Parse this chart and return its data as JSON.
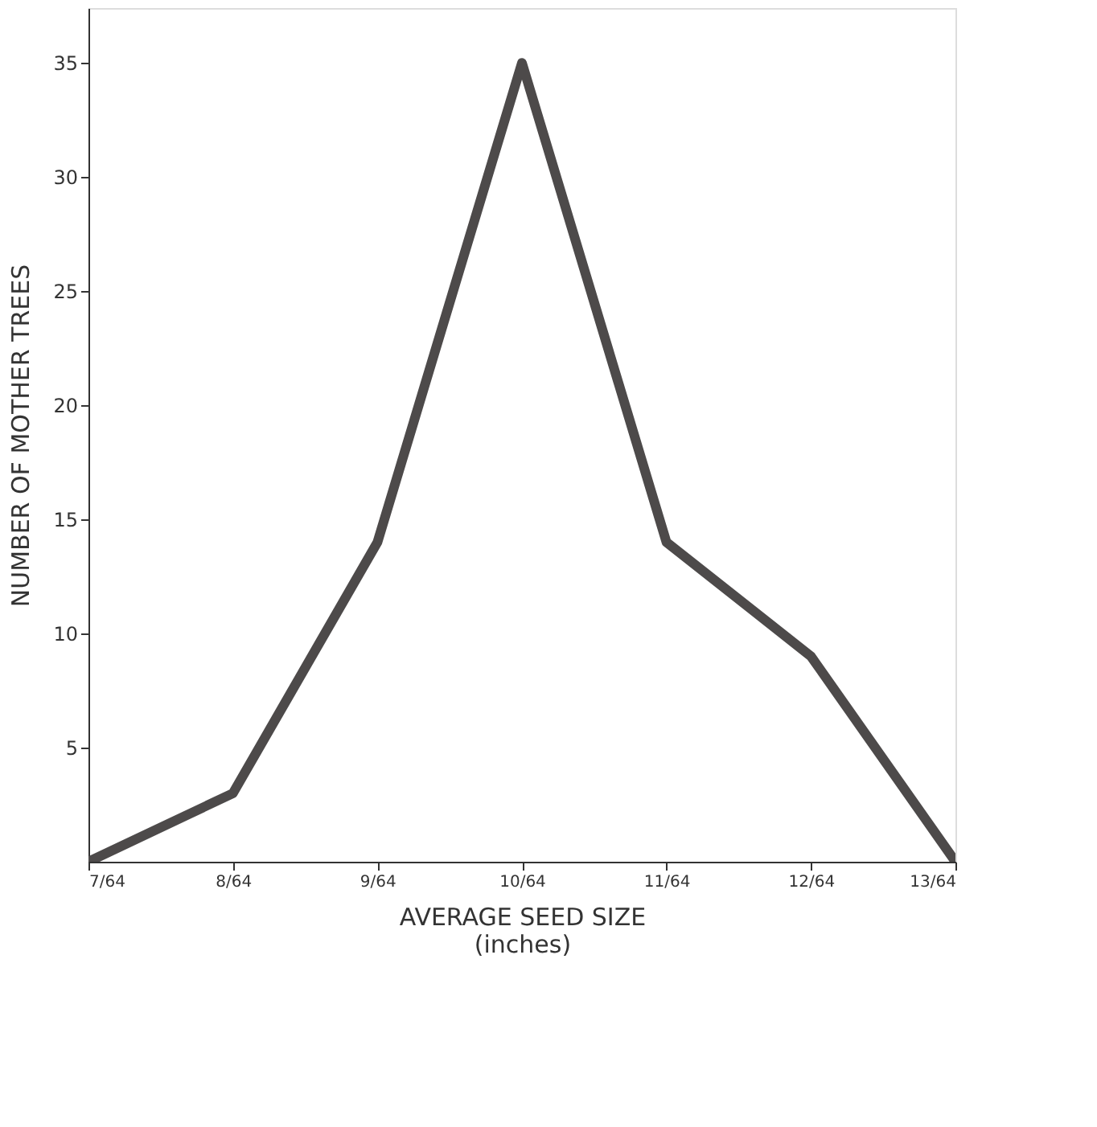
{
  "chart_data": {
    "type": "line",
    "xlabel": "AVERAGE SEED SIZE\n(inches)",
    "ylabel": "NUMBER OF MOTHER TREES",
    "categories": [
      "7/64",
      "8/64",
      "9/64",
      "10/64",
      "11/64",
      "12/64",
      "13/64"
    ],
    "series": [
      {
        "color": "#4d4a4a",
        "values": [
          0,
          3,
          14,
          35,
          14,
          9,
          0
        ]
      }
    ],
    "ylim": [
      0,
      37.4
    ],
    "yticks": [
      5,
      10,
      15,
      20,
      25,
      30,
      35
    ],
    "grid": false,
    "marker": "none",
    "line_style": "solid"
  }
}
